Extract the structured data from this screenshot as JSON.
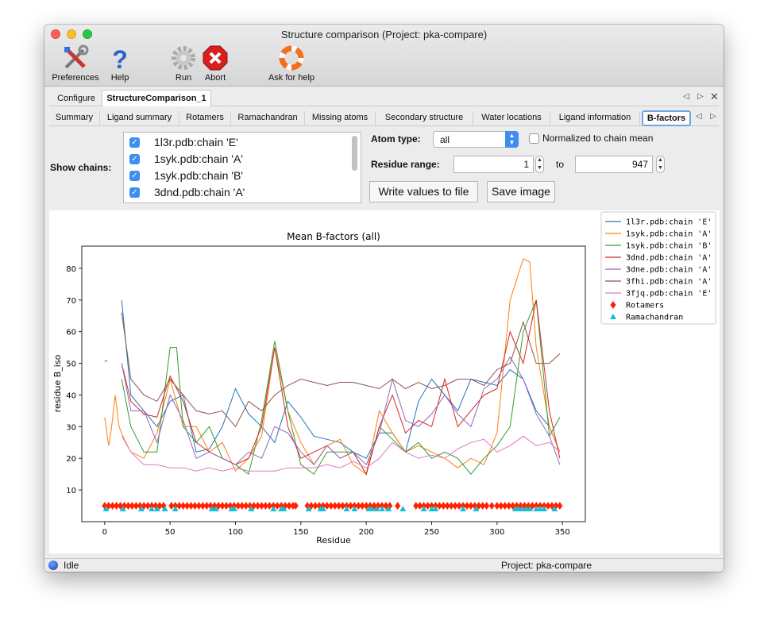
{
  "window": {
    "title": "Structure comparison (Project: pka-compare)"
  },
  "toolbar": [
    {
      "label": "Preferences",
      "icon": "tools-icon"
    },
    {
      "label": "Help",
      "icon": "question-icon"
    },
    {
      "label": "Run",
      "icon": "gear-icon"
    },
    {
      "label": "Abort",
      "icon": "stop-icon"
    },
    {
      "label": "Ask for help",
      "icon": "lifebuoy-icon"
    }
  ],
  "tabs": [
    {
      "label": "Configure"
    },
    {
      "label": "StructureComparison_1",
      "active": true
    }
  ],
  "subtabs": [
    {
      "label": "Summary"
    },
    {
      "label": "Ligand summary"
    },
    {
      "label": "Rotamers"
    },
    {
      "label": "Ramachandran"
    },
    {
      "label": "Missing atoms"
    },
    {
      "label": "Secondary structure"
    },
    {
      "label": "Water locations"
    },
    {
      "label": "Ligand information"
    },
    {
      "label": "B-factors",
      "active": true
    }
  ],
  "controls": {
    "show_chains_label": "Show chains:",
    "chains": [
      {
        "label": "1l3r.pdb:chain 'E'",
        "checked": true
      },
      {
        "label": "1syk.pdb:chain 'A'",
        "checked": true
      },
      {
        "label": "1syk.pdb:chain 'B'",
        "checked": true
      },
      {
        "label": "3dnd.pdb:chain 'A'",
        "checked": true
      }
    ],
    "atom_type_label": "Atom type:",
    "atom_type_value": "all",
    "normalized_label": "Normalized to chain mean",
    "normalized_checked": false,
    "residue_range_label": "Residue range:",
    "range_from": "1",
    "range_to_label": "to",
    "range_to": "947",
    "write_button": "Write values to file",
    "save_button": "Save image"
  },
  "status": {
    "state": "Idle",
    "project": "Project: pka-compare"
  },
  "chart_data": {
    "type": "line",
    "title": "Mean B-factors (all)",
    "xlabel": "Residue",
    "ylabel": "residue B_iso",
    "xlim": [
      -17.5,
      367.5
    ],
    "ylim": [
      0,
      87
    ],
    "xticks": [
      0,
      50,
      100,
      150,
      200,
      250,
      300,
      350
    ],
    "yticks": [
      10,
      20,
      30,
      40,
      50,
      60,
      70,
      80
    ],
    "grid": false,
    "legend_position": "outside-top-right",
    "series": [
      {
        "name": "1l3r.pdb:chain 'E'",
        "color": "#1f77b4",
        "x": [
          0,
          2,
          null,
          13,
          20,
          30,
          40,
          50,
          60,
          70,
          80,
          90,
          100,
          110,
          120,
          130,
          140,
          150,
          160,
          170,
          180,
          190,
          200,
          210,
          220,
          230,
          240,
          250,
          260,
          270,
          280,
          290,
          300,
          310,
          320,
          330,
          340,
          348
        ],
        "y": [
          50.5,
          51,
          null,
          70,
          40,
          35,
          30,
          38,
          40,
          22,
          23,
          30,
          42,
          34,
          30,
          25,
          38,
          33,
          27,
          26,
          25,
          22,
          20,
          28,
          28,
          22,
          38,
          45,
          40,
          35,
          45,
          44,
          43,
          48,
          45,
          35,
          30,
          22
        ]
      },
      {
        "name": "1syk.pdb:chain 'A'",
        "color": "#ff7f0e",
        "x": [
          0,
          3,
          5,
          8,
          11,
          15,
          20,
          30,
          40,
          50,
          60,
          70,
          80,
          90,
          100,
          110,
          120,
          130,
          140,
          150,
          160,
          170,
          180,
          190,
          200,
          210,
          220,
          230,
          240,
          250,
          260,
          270,
          280,
          290,
          300,
          310,
          320,
          325,
          330,
          340,
          348
        ],
        "y": [
          33,
          24,
          29,
          40,
          30,
          26,
          22,
          20,
          28,
          45,
          30,
          30,
          22,
          25,
          16,
          20,
          27,
          55,
          35,
          25,
          18,
          24,
          26,
          18,
          15,
          35,
          28,
          22,
          24,
          22,
          20,
          17,
          20,
          18,
          28,
          70,
          83,
          82,
          55,
          30,
          22
        ]
      },
      {
        "name": "1syk.pdb:chain 'B'",
        "color": "#2ca02c",
        "x": [
          13,
          20,
          30,
          40,
          50,
          55,
          60,
          70,
          80,
          90,
          100,
          110,
          120,
          130,
          140,
          150,
          160,
          170,
          180,
          190,
          200,
          210,
          220,
          230,
          240,
          250,
          260,
          270,
          280,
          290,
          300,
          310,
          320,
          330,
          340,
          348
        ],
        "y": [
          45,
          30,
          22,
          22,
          55,
          55,
          30,
          25,
          30,
          20,
          18,
          15,
          32,
          57,
          35,
          18,
          15,
          22,
          22,
          22,
          15,
          30,
          26,
          22,
          25,
          20,
          22,
          20,
          15,
          20,
          24,
          30,
          60,
          70,
          27,
          33
        ]
      },
      {
        "name": "3dnd.pdb:chain 'A'",
        "color": "#d62728",
        "x": [
          13,
          20,
          30,
          40,
          50,
          60,
          70,
          80,
          90,
          100,
          110,
          120,
          130,
          140,
          150,
          160,
          170,
          180,
          190,
          200,
          210,
          220,
          230,
          240,
          250,
          260,
          270,
          280,
          290,
          300,
          310,
          320,
          330,
          340,
          348
        ],
        "y": [
          50,
          38,
          34,
          33,
          46,
          38,
          25,
          22,
          20,
          18,
          20,
          30,
          55,
          30,
          20,
          22,
          24,
          20,
          22,
          15,
          30,
          40,
          28,
          32,
          30,
          45,
          30,
          35,
          40,
          42,
          60,
          50,
          70,
          35,
          20
        ]
      },
      {
        "name": "3dne.pdb:chain 'A'",
        "color": "#9467bd",
        "x": [
          13,
          20,
          30,
          40,
          50,
          60,
          70,
          80,
          90,
          100,
          110,
          120,
          130,
          140,
          150,
          160,
          170,
          180,
          190,
          200,
          210,
          220,
          230,
          240,
          250,
          260,
          270,
          280,
          290,
          300,
          310,
          320,
          330,
          340,
          348
        ],
        "y": [
          50,
          35,
          35,
          25,
          40,
          32,
          20,
          22,
          20,
          18,
          22,
          20,
          30,
          28,
          22,
          18,
          24,
          20,
          22,
          18,
          28,
          45,
          32,
          30,
          34,
          40,
          34,
          30,
          42,
          45,
          52,
          45,
          34,
          27,
          18
        ]
      },
      {
        "name": "3fhi.pdb:chain 'A'",
        "color": "#8c564b",
        "x": [
          13,
          20,
          30,
          40,
          50,
          60,
          70,
          80,
          90,
          100,
          110,
          120,
          130,
          140,
          150,
          160,
          170,
          180,
          190,
          200,
          210,
          220,
          230,
          240,
          250,
          260,
          270,
          280,
          290,
          300,
          310,
          320,
          330,
          340,
          348
        ],
        "y": [
          66,
          45,
          40,
          38,
          45,
          40,
          35,
          34,
          35,
          30,
          38,
          35,
          40,
          43,
          45,
          44,
          43,
          44,
          44,
          43,
          42,
          45,
          42,
          44,
          42,
          43,
          45,
          45,
          43,
          48,
          50,
          63,
          50,
          50,
          53
        ]
      },
      {
        "name": "3fjq.pdb:chain 'E'",
        "color": "#e377c2",
        "x": [
          13,
          20,
          30,
          40,
          50,
          60,
          70,
          80,
          90,
          100,
          110,
          120,
          130,
          140,
          150,
          160,
          170,
          180,
          190,
          200,
          210,
          220,
          230,
          240,
          250,
          260,
          270,
          280,
          290,
          300,
          310,
          320,
          330,
          340,
          348
        ],
        "y": [
          27,
          22,
          18,
          18,
          17,
          17,
          16,
          17,
          16,
          17,
          16,
          16,
          16,
          17,
          17,
          17,
          18,
          17,
          19,
          17,
          20,
          25,
          22,
          20,
          21,
          20,
          23,
          25,
          26,
          22,
          24,
          27,
          24,
          25,
          22
        ]
      }
    ],
    "markers": [
      {
        "name": "Rotamers",
        "color": "#ff2200",
        "shape": "diamond",
        "y": 5,
        "x": [
          0,
          3,
          6,
          9,
          12,
          15,
          18,
          21,
          24,
          27,
          30,
          33,
          36,
          39,
          42,
          45,
          51,
          54,
          57,
          60,
          63,
          66,
          69,
          72,
          75,
          78,
          81,
          84,
          87,
          90,
          93,
          96,
          99,
          102,
          105,
          108,
          111,
          114,
          117,
          120,
          123,
          126,
          129,
          132,
          135,
          138,
          141,
          144,
          146,
          155,
          158,
          161,
          164,
          167,
          170,
          173,
          176,
          179,
          182,
          185,
          188,
          191,
          194,
          197,
          200,
          203,
          206,
          209,
          212,
          215,
          218,
          224,
          238,
          241,
          244,
          247,
          250,
          253,
          256,
          259,
          262,
          265,
          268,
          271,
          274,
          277,
          280,
          283,
          286,
          289,
          292,
          296,
          300,
          303,
          306,
          309,
          312,
          315,
          318,
          321,
          324,
          327,
          330,
          333,
          336,
          339,
          342,
          345,
          348
        ]
      },
      {
        "name": "Ramachandran",
        "color": "#17becf",
        "shape": "triangle",
        "y": 4,
        "x": [
          1,
          14,
          28,
          36,
          40,
          46,
          54,
          82,
          85,
          97,
          99,
          112,
          129,
          135,
          137,
          156,
          165,
          167,
          185,
          191,
          202,
          204,
          208,
          212,
          217,
          228,
          244,
          250,
          253,
          274,
          284,
          314,
          316,
          319,
          322,
          325,
          330,
          333,
          336,
          344
        ]
      }
    ]
  }
}
